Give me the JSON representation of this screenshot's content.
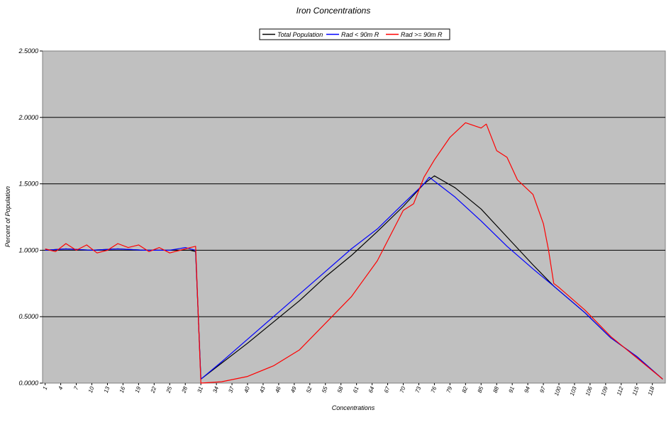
{
  "chart_data": {
    "type": "line",
    "title": "Iron Concentrations",
    "xlabel": "Concentrations",
    "ylabel": "Percent of Population",
    "ylim": [
      0,
      2.5
    ],
    "yticks": [
      "0.0000",
      "0.5000",
      "1.0000",
      "1.5000",
      "2.0000",
      "2.5000"
    ],
    "xtick_labels": [
      "1",
      "4",
      "7",
      "10",
      "13",
      "16",
      "19",
      "22",
      "25",
      "28",
      "31",
      "34",
      "37",
      "40",
      "43",
      "46",
      "49",
      "52",
      "55",
      "58",
      "61",
      "64",
      "67",
      "70",
      "73",
      "76",
      "79",
      "82",
      "85",
      "88",
      "91",
      "94",
      "97",
      "100",
      "103",
      "106",
      "109",
      "112",
      "115",
      "118"
    ],
    "x_start": 1,
    "x_end": 120,
    "grid": "horizontal",
    "plot_background": "#c0c0c0",
    "legend_position": "top-center",
    "series": [
      {
        "name": "Total Population",
        "color": "#000000",
        "points": [
          [
            1,
            1.0
          ],
          [
            5,
            1.01
          ],
          [
            10,
            1.0
          ],
          [
            15,
            1.01
          ],
          [
            20,
            1.0
          ],
          [
            25,
            1.0
          ],
          [
            29,
            1.0
          ],
          [
            30,
            0.99
          ],
          [
            31,
            0.03
          ],
          [
            35,
            0.15
          ],
          [
            40,
            0.3
          ],
          [
            45,
            0.46
          ],
          [
            50,
            0.62
          ],
          [
            55,
            0.8
          ],
          [
            60,
            0.96
          ],
          [
            65,
            1.14
          ],
          [
            70,
            1.33
          ],
          [
            74,
            1.5
          ],
          [
            76,
            1.56
          ],
          [
            80,
            1.47
          ],
          [
            85,
            1.31
          ],
          [
            90,
            1.1
          ],
          [
            95,
            0.89
          ],
          [
            99,
            0.73
          ],
          [
            105,
            0.53
          ],
          [
            110,
            0.34
          ],
          [
            115,
            0.2
          ],
          [
            120,
            0.03
          ]
        ]
      },
      {
        "name": "Rad < 90m R",
        "color": "#0000ff",
        "points": [
          [
            1,
            1.0
          ],
          [
            5,
            1.01
          ],
          [
            10,
            1.0
          ],
          [
            15,
            1.01
          ],
          [
            20,
            1.0
          ],
          [
            25,
            1.0
          ],
          [
            28,
            1.02
          ],
          [
            30,
            1.0
          ],
          [
            31,
            0.03
          ],
          [
            35,
            0.16
          ],
          [
            40,
            0.33
          ],
          [
            45,
            0.5
          ],
          [
            50,
            0.67
          ],
          [
            55,
            0.84
          ],
          [
            60,
            1.01
          ],
          [
            65,
            1.16
          ],
          [
            70,
            1.35
          ],
          [
            74,
            1.5
          ],
          [
            75,
            1.55
          ],
          [
            80,
            1.4
          ],
          [
            85,
            1.22
          ],
          [
            90,
            1.03
          ],
          [
            95,
            0.86
          ],
          [
            99,
            0.73
          ],
          [
            105,
            0.53
          ],
          [
            110,
            0.34
          ],
          [
            115,
            0.2
          ],
          [
            120,
            0.03
          ]
        ]
      },
      {
        "name": "Rad >= 90m R",
        "color": "#ff0000",
        "points": [
          [
            1,
            1.01
          ],
          [
            3,
            0.99
          ],
          [
            5,
            1.05
          ],
          [
            7,
            1.0
          ],
          [
            9,
            1.04
          ],
          [
            11,
            0.98
          ],
          [
            13,
            1.0
          ],
          [
            15,
            1.05
          ],
          [
            17,
            1.02
          ],
          [
            19,
            1.04
          ],
          [
            21,
            0.99
          ],
          [
            23,
            1.02
          ],
          [
            25,
            0.98
          ],
          [
            27,
            1.0
          ],
          [
            29,
            1.02
          ],
          [
            30,
            1.03
          ],
          [
            31,
            0.0
          ],
          [
            35,
            0.01
          ],
          [
            40,
            0.05
          ],
          [
            45,
            0.13
          ],
          [
            50,
            0.25
          ],
          [
            55,
            0.45
          ],
          [
            60,
            0.65
          ],
          [
            65,
            0.92
          ],
          [
            70,
            1.3
          ],
          [
            72,
            1.35
          ],
          [
            74,
            1.55
          ],
          [
            76,
            1.68
          ],
          [
            79,
            1.85
          ],
          [
            82,
            1.96
          ],
          [
            85,
            1.92
          ],
          [
            86,
            1.95
          ],
          [
            88,
            1.75
          ],
          [
            90,
            1.7
          ],
          [
            92,
            1.53
          ],
          [
            95,
            1.42
          ],
          [
            97,
            1.2
          ],
          [
            98,
            1.0
          ],
          [
            99,
            0.75
          ],
          [
            100,
            0.72
          ],
          [
            105,
            0.55
          ],
          [
            110,
            0.35
          ],
          [
            115,
            0.19
          ],
          [
            120,
            0.03
          ]
        ]
      }
    ]
  }
}
